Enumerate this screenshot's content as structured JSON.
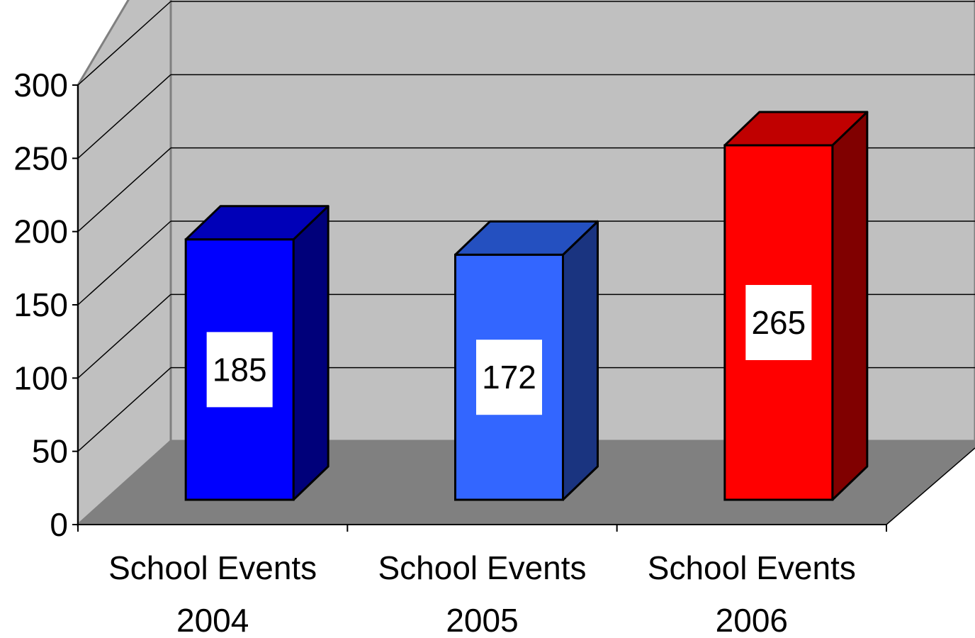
{
  "chart_data": {
    "type": "bar",
    "title": "",
    "xlabel": "",
    "ylabel": "",
    "categories": [
      [
        "School Events",
        "2004"
      ],
      [
        "School Events",
        "2005"
      ],
      [
        "School Events",
        "2006"
      ]
    ],
    "values": [
      185,
      172,
      265
    ],
    "data_labels": [
      "185",
      "172",
      "265"
    ],
    "ylim": [
      0,
      300
    ],
    "yticks": [
      0,
      50,
      100,
      150,
      200,
      250,
      300
    ],
    "grid": true,
    "legend": "none",
    "style": "3d-column",
    "colors": {
      "bars": [
        {
          "front": "#0000ff",
          "top": "#0000b8",
          "side": "#00007a"
        },
        {
          "front": "#3366ff",
          "top": "#2450c0",
          "side": "#1a3480"
        },
        {
          "front": "#ff0000",
          "top": "#c00000",
          "side": "#800000"
        }
      ],
      "back_wall": "#c0c0c0",
      "side_wall": "#c0c0c0",
      "floor": "#808080",
      "gridline": "#000000"
    }
  }
}
